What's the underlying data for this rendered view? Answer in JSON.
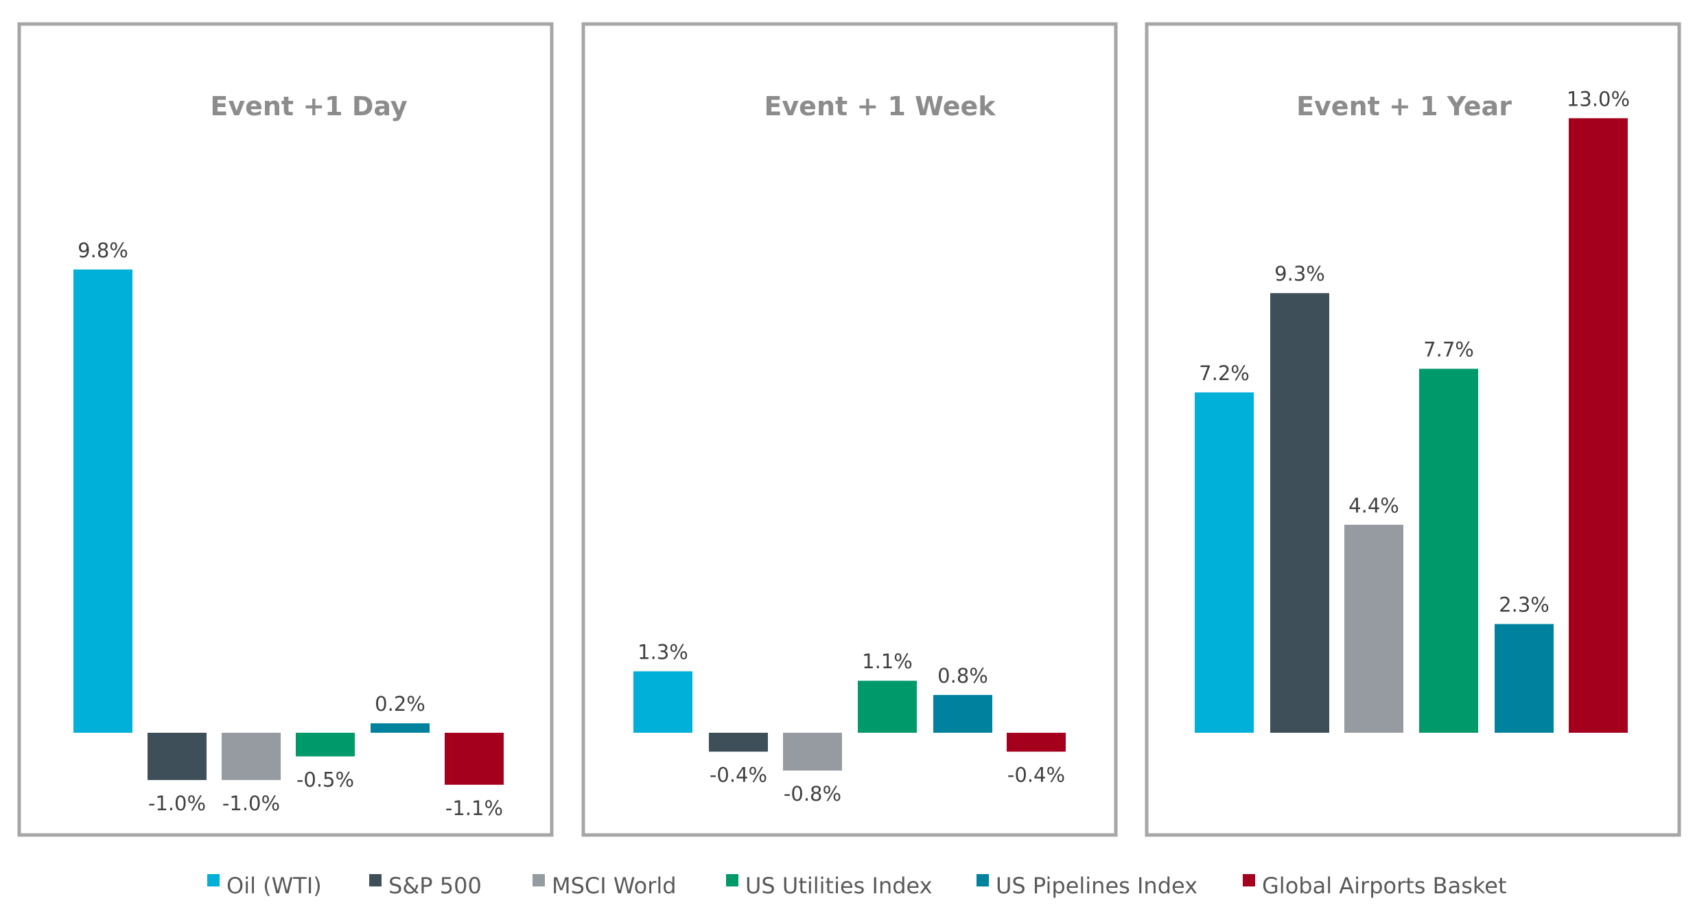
{
  "chart_data": [
    {
      "type": "bar",
      "title": "Event +1 Day",
      "categories": [
        "Oil (WTI)",
        "S&P 500",
        "MSCI World",
        "US Utilities Index",
        "US Pipelines Index",
        "Global Airports Basket"
      ],
      "values": [
        9.8,
        -1.0,
        -1.0,
        -0.5,
        0.2,
        -1.1
      ],
      "labels": [
        "9.8%",
        "-1.0%",
        "-1.0%",
        "-0.5%",
        "0.2%",
        "-1.1%"
      ],
      "ylim": [
        -2.1,
        13.8
      ],
      "grid": false
    },
    {
      "type": "bar",
      "title": "Event + 1 Week",
      "categories": [
        "Oil (WTI)",
        "S&P 500",
        "MSCI World",
        "US Utilities Index",
        "US Pipelines Index",
        "Global Airports Basket"
      ],
      "values": [
        1.3,
        -0.4,
        -0.8,
        1.1,
        0.8,
        -0.4
      ],
      "labels": [
        "1.3%",
        "-0.4%",
        "-0.8%",
        "1.1%",
        "0.8%",
        "-0.4%"
      ],
      "ylim": [
        -2.1,
        13.8
      ],
      "grid": false
    },
    {
      "type": "bar",
      "title": "Event + 1 Year",
      "categories": [
        "Oil (WTI)",
        "S&P 500",
        "MSCI World",
        "US Utilities Index",
        "US Pipelines Index",
        "Global Airports Basket"
      ],
      "values": [
        7.2,
        9.3,
        4.4,
        7.7,
        2.3,
        13.0
      ],
      "labels": [
        "7.2%",
        "9.3%",
        "4.4%",
        "7.7%",
        "2.3%",
        "13.0%"
      ],
      "ylim": [
        -2.1,
        13.8
      ],
      "grid": false
    }
  ],
  "legend": {
    "placement": "bottom",
    "items": [
      {
        "label": "Oil (WTI)",
        "color": "#00b0d8"
      },
      {
        "label": "S&P 500",
        "color": "#3e4f5a"
      },
      {
        "label": "MSCI World",
        "color": "#959ba0"
      },
      {
        "label": "US Utilities Index",
        "color": "#009a6a"
      },
      {
        "label": "US Pipelines Index",
        "color": "#00829f"
      },
      {
        "label": "Global Airports Basket",
        "color": "#a4001d"
      }
    ]
  }
}
